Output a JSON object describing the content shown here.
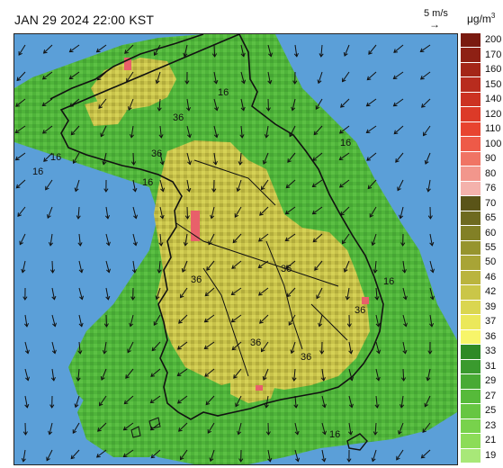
{
  "header": {
    "title": "JAN 29 2024 22:00 KST",
    "scale_label": "5 m/s",
    "scale_arrow": "→",
    "unit_base": "μg/m",
    "unit_exp": "3"
  },
  "colorbar": {
    "levels": [
      {
        "label": "200",
        "color": "#7a1a10"
      },
      {
        "label": "170",
        "color": "#8e2014"
      },
      {
        "label": "160",
        "color": "#a42618"
      },
      {
        "label": "150",
        "color": "#b82c1e"
      },
      {
        "label": "140",
        "color": "#cc3222"
      },
      {
        "label": "120",
        "color": "#dc3a28"
      },
      {
        "label": "110",
        "color": "#e84430"
      },
      {
        "label": "100",
        "color": "#ee5a48"
      },
      {
        "label": "90",
        "color": "#f07464"
      },
      {
        "label": "80",
        "color": "#f2968c"
      },
      {
        "label": "76",
        "color": "#f4b2ac"
      },
      {
        "label": "70",
        "color": "#5a5418"
      },
      {
        "label": "65",
        "color": "#6e6a20"
      },
      {
        "label": "60",
        "color": "#828026"
      },
      {
        "label": "55",
        "color": "#96942e"
      },
      {
        "label": "50",
        "color": "#a8a436"
      },
      {
        "label": "46",
        "color": "#bab43e"
      },
      {
        "label": "42",
        "color": "#cac648"
      },
      {
        "label": "39",
        "color": "#dad650"
      },
      {
        "label": "37",
        "color": "#ebe85a"
      },
      {
        "label": "36",
        "color": "#f7f56a"
      },
      {
        "label": "33",
        "color": "#2e8a26"
      },
      {
        "label": "31",
        "color": "#3a9a2e"
      },
      {
        "label": "29",
        "color": "#48aa34"
      },
      {
        "label": "27",
        "color": "#56ba3a"
      },
      {
        "label": "25",
        "color": "#66c642"
      },
      {
        "label": "23",
        "color": "#78d24c"
      },
      {
        "label": "21",
        "color": "#8cdc58"
      },
      {
        "label": "19",
        "color": "#a8e878"
      }
    ]
  },
  "map": {
    "sea_color": "#5b9fd8",
    "contour_labels": [
      "16",
      "16",
      "16",
      "16",
      "16",
      "16",
      "16",
      "36",
      "36",
      "36",
      "36",
      "36",
      "36",
      "36"
    ]
  }
}
